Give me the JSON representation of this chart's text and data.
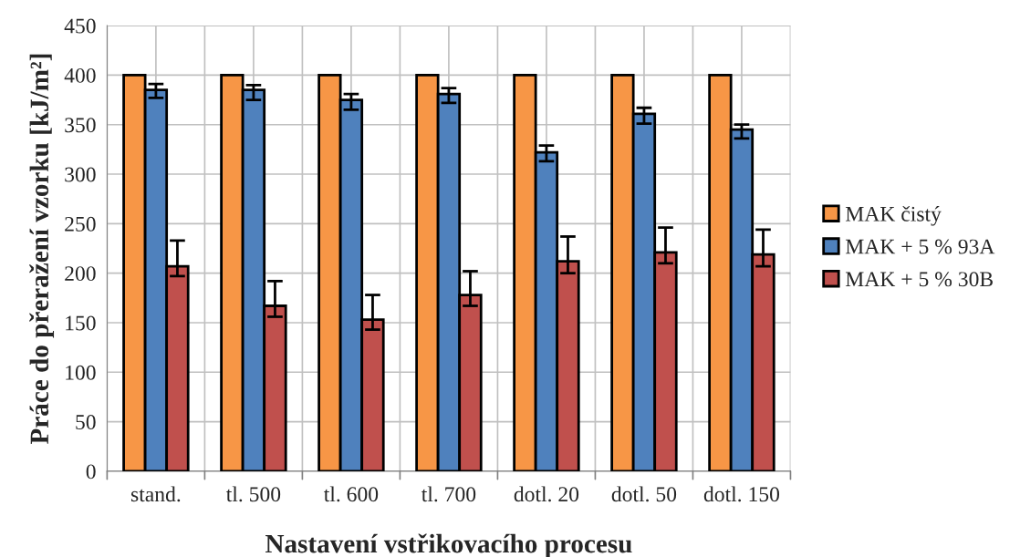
{
  "chart_data": {
    "type": "bar",
    "xlabel": "Nastavení vstřikovacího procesu",
    "ylabel": "Práce do přeražení vzorku [kJ/m²]",
    "categories": [
      "stand.",
      "tl. 500",
      "tl. 600",
      "tl. 700",
      "dotl. 20",
      "dotl. 50",
      "dotl. 150"
    ],
    "series": [
      {
        "name": "MAK čistý",
        "color": "#f79646",
        "values": [
          400,
          400,
          400,
          400,
          400,
          400,
          400
        ]
      },
      {
        "name": "MAK + 5 % 93A",
        "color": "#4f81bd",
        "values": [
          385,
          385,
          375,
          381,
          322,
          361,
          345
        ],
        "errors": [
          [
            377,
            391
          ],
          [
            375,
            390
          ],
          [
            365,
            381
          ],
          [
            372,
            387
          ],
          [
            313,
            329
          ],
          [
            351,
            367
          ],
          [
            336,
            350
          ]
        ]
      },
      {
        "name": "MAK + 5 % 30B",
        "color": "#c0504d",
        "values": [
          207,
          167,
          153,
          178,
          212,
          221,
          219
        ],
        "errors": [
          [
            197,
            233
          ],
          [
            156,
            192
          ],
          [
            143,
            178
          ],
          [
            167,
            202
          ],
          [
            200,
            237
          ],
          [
            210,
            246
          ],
          [
            207,
            244
          ]
        ]
      }
    ],
    "ylim": [
      0,
      450
    ],
    "yticks": [
      0,
      50,
      100,
      150,
      200,
      250,
      300,
      350,
      400,
      450
    ],
    "grid": true,
    "legend": "right"
  }
}
